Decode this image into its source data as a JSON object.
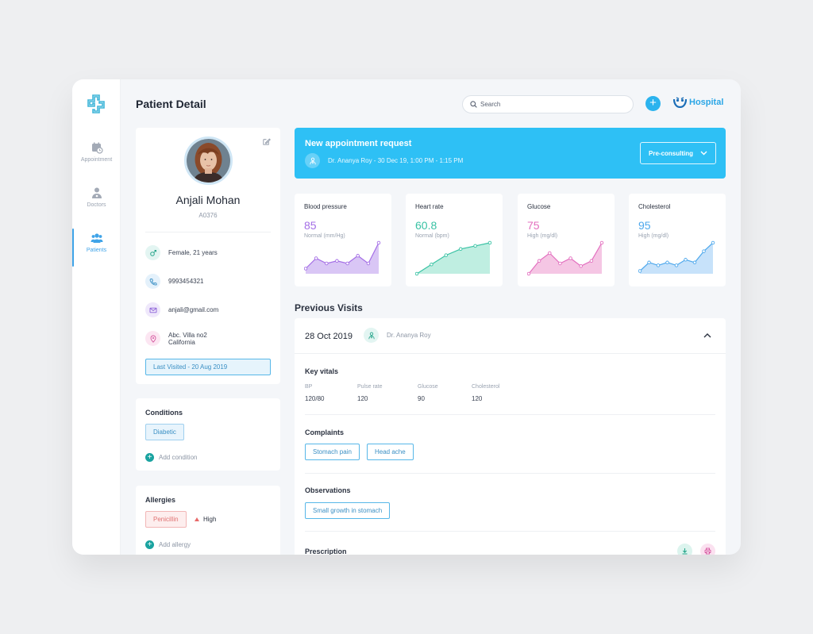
{
  "sidebar": {
    "items": [
      {
        "label": "Appointment",
        "icon": "calendar-clock-icon"
      },
      {
        "label": "Doctors",
        "icon": "doctor-icon"
      },
      {
        "label": "Patients",
        "icon": "patients-icon",
        "active": true
      }
    ]
  },
  "header": {
    "title": "Patient Detail",
    "search_placeholder": "Search",
    "brand": "Hospital"
  },
  "patient": {
    "name": "Anjali Mohan",
    "id": "A0376",
    "gender_age": "Female, 21 years",
    "phone": "9993454321",
    "email": "anjali@gmail.com",
    "address_line1": "Abc. Villa no2",
    "address_line2": "California",
    "last_visited": "Last Visited - 20 Aug 2019"
  },
  "conditions": {
    "title": "Conditions",
    "items": [
      "Diabetic"
    ],
    "add_label": "Add condition"
  },
  "allergies": {
    "title": "Allergies",
    "items": [
      {
        "name": "Penicillin",
        "severity": "High"
      }
    ],
    "add_label": "Add allergy"
  },
  "banner": {
    "title": "New appointment request",
    "details": "Dr. Ananya Roy - 30 Dec 19, 1:00 PM - 1:15 PM",
    "button": "Pre-consulting"
  },
  "vitals": [
    {
      "title": "Blood pressure",
      "value": "85",
      "unit": "Normal (mm/Hg)",
      "color": "#a46ee6",
      "fill": "#d9c6f5",
      "points": [
        2,
        6,
        4,
        5,
        4,
        7,
        4,
        12
      ]
    },
    {
      "title": "Heart rate",
      "value": "60.8",
      "unit": "Normal (bpm)",
      "color": "#39c2a4",
      "fill": "#bfeee1",
      "points": [
        0,
        3,
        6,
        8,
        9,
        10
      ]
    },
    {
      "title": "Glucose",
      "value": "75",
      "unit": "High (mg/dl)",
      "color": "#e36fbf",
      "fill": "#f5c6e4",
      "points": [
        0,
        5,
        8,
        4,
        6,
        3,
        5,
        12
      ]
    },
    {
      "title": "Cholesterol",
      "value": "95",
      "unit": "High (mg/dl)",
      "color": "#4ea8ec",
      "fill": "#c7e2fa",
      "points": [
        1,
        4,
        3,
        4,
        3,
        5,
        4,
        8,
        11
      ]
    }
  ],
  "previous_visits": {
    "title": "Previous Visits",
    "date": "28 Oct 2019",
    "doctor": "Dr. Ananya Roy",
    "key_vitals_title": "Key vitals",
    "key_vitals": [
      {
        "label": "BP",
        "value": "120/80"
      },
      {
        "label": "Pulse rate",
        "value": "120"
      },
      {
        "label": "Glucose",
        "value": "90"
      },
      {
        "label": "Cholesterol",
        "value": "120"
      }
    ],
    "complaints_title": "Complaints",
    "complaints": [
      "Stomach pain",
      "Head ache"
    ],
    "observations_title": "Observations",
    "observations": [
      "Small growth in stomach"
    ],
    "prescription_title": "Prescription"
  }
}
